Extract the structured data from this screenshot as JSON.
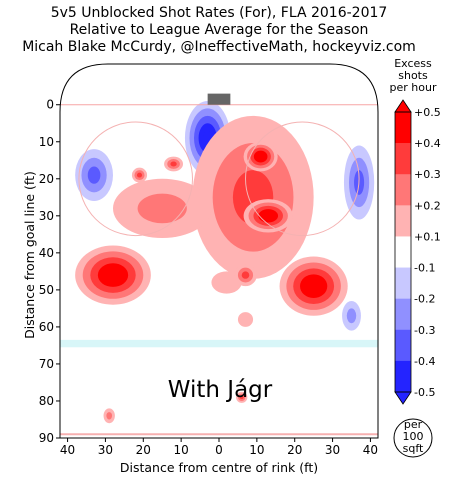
{
  "chart_data": {
    "type": "heatmap",
    "title_lines": [
      "5v5 Unblocked Shot Rates (For), FLA 2016-2017",
      "Relative to League Average for the Season",
      "Micah Blake McCurdy, @IneffectiveMath, hockeyviz.com"
    ],
    "xlabel": "Distance from centre of rink (ft)",
    "ylabel": "Distance from goal line (ft)",
    "xlim": [
      42,
      -42
    ],
    "ylim": [
      -11,
      90
    ],
    "x_ticks": [
      "40",
      "30",
      "20",
      "10",
      "0",
      "10",
      "20",
      "30",
      "40"
    ],
    "x_tick_values": [
      40,
      30,
      20,
      10,
      0,
      -10,
      -20,
      -30,
      -40
    ],
    "y_ticks": [
      "0",
      "10",
      "20",
      "30",
      "40",
      "50",
      "60",
      "70",
      "80",
      "90"
    ],
    "y_tick_values": [
      0,
      10,
      20,
      30,
      40,
      50,
      60,
      70,
      80,
      90
    ],
    "annotation": "With Jágr",
    "area_badge": [
      "per",
      "100",
      "sqft"
    ],
    "colorbar": {
      "title": [
        "Excess",
        "shots",
        "per hour"
      ],
      "labels": [
        "+0.5",
        "+0.4",
        "+0.3",
        "+0.2",
        "+0.1",
        "-0.1",
        "-0.2",
        "-0.3",
        "-0.4",
        "-0.5"
      ],
      "levels": [
        0.5,
        0.4,
        0.3,
        0.2,
        0.1,
        -0.1,
        -0.2,
        -0.3,
        -0.4,
        -0.5
      ],
      "band_colors": [
        "#ff0000",
        "#ff3b3b",
        "#ff7777",
        "#ffb3b3",
        "#ffffff",
        "#c8c8ff",
        "#9090ff",
        "#5a5aff",
        "#2424ff"
      ]
    },
    "blobs": [
      {
        "x": 3,
        "y": 9,
        "rx": 6,
        "ry": 10,
        "value": -0.5
      },
      {
        "x": -9,
        "y": 25,
        "rx": 16,
        "ry": 22,
        "value": 0.35
      },
      {
        "x": -11,
        "y": 14,
        "rx": 4.5,
        "ry": 4,
        "value": 0.45
      },
      {
        "x": -13,
        "y": 30,
        "rx": 6.5,
        "ry": 4.5,
        "value": 0.45
      },
      {
        "x": 28,
        "y": 46,
        "rx": 10,
        "ry": 8,
        "value": 0.45
      },
      {
        "x": -25,
        "y": 49,
        "rx": 9,
        "ry": 8,
        "value": 0.45
      },
      {
        "x": 15,
        "y": 28,
        "rx": 13,
        "ry": 8,
        "value": 0.2
      },
      {
        "x": 12,
        "y": 16,
        "rx": 2.5,
        "ry": 2,
        "value": 0.3
      },
      {
        "x": 21,
        "y": 19,
        "rx": 2,
        "ry": 2,
        "value": 0.3
      },
      {
        "x": -2,
        "y": 48,
        "rx": 4,
        "ry": 3,
        "value": 0.15
      },
      {
        "x": -7,
        "y": 46,
        "rx": 3,
        "ry": 3,
        "value": 0.25
      },
      {
        "x": -7,
        "y": 58,
        "rx": 2,
        "ry": 2,
        "value": 0.15
      },
      {
        "x": 33,
        "y": 19,
        "rx": 5,
        "ry": 7,
        "value": -0.25
      },
      {
        "x": -37,
        "y": 21,
        "rx": 4,
        "ry": 10,
        "value": -0.3
      },
      {
        "x": -35,
        "y": 57,
        "rx": 2.5,
        "ry": 4,
        "value": -0.2
      },
      {
        "x": 29,
        "y": 84,
        "rx": 1.5,
        "ry": 2,
        "value": 0.2
      },
      {
        "x": -6,
        "y": 79,
        "rx": 1.5,
        "ry": 1.5,
        "value": 0.3
      }
    ]
  }
}
